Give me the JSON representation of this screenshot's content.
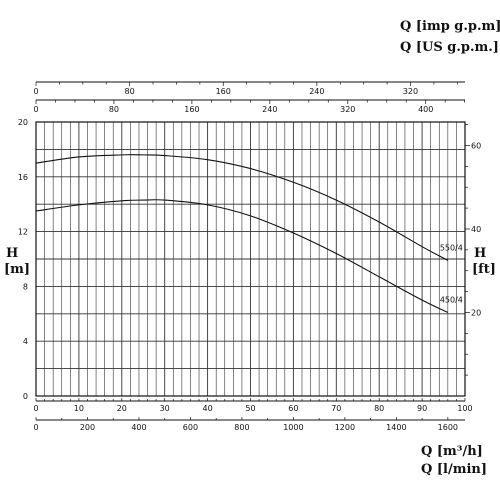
{
  "chart_data": {
    "type": "line",
    "units": {
      "top_line1": "Q [imp g.p.m]",
      "top_line2": "Q [US g.p.m.]",
      "bottom_line1": "Q [m³/h]",
      "bottom_line2": "Q [l/min]",
      "left_H": "H",
      "left_unit": "[m]",
      "right_H": "H",
      "right_unit": "[ft]"
    },
    "axes": {
      "x_m3h": {
        "range": [
          0,
          100
        ],
        "ticks": [
          "0",
          "10",
          "20",
          "30",
          "40",
          "50",
          "60",
          "70",
          "80",
          "90",
          "100"
        ]
      },
      "x_lmin": {
        "ticks": [
          "0",
          "200",
          "400",
          "600",
          "800",
          "1000",
          "1200",
          "1400",
          "1600"
        ]
      },
      "x_impgpm": {
        "ticks": [
          "0",
          "80",
          "160",
          "240",
          "320"
        ]
      },
      "x_usgpm": {
        "ticks": [
          "0",
          "80",
          "160",
          "240",
          "320",
          "400"
        ]
      },
      "y_m": {
        "range": [
          0,
          20
        ],
        "ticks": [
          "0",
          "4",
          "8",
          "12",
          "16",
          "20"
        ]
      },
      "y_ft": {
        "ticks": [
          "20",
          "40",
          "60"
        ]
      }
    },
    "grid": true,
    "series": [
      {
        "name": "550/4",
        "x": [
          0,
          10,
          20,
          25,
          30,
          40,
          50,
          60,
          70,
          80,
          90,
          96
        ],
        "y": [
          17.0,
          17.45,
          17.6,
          17.6,
          17.55,
          17.25,
          16.6,
          15.6,
          14.3,
          12.7,
          10.9,
          9.9
        ]
      },
      {
        "name": "450/4",
        "x": [
          0,
          10,
          20,
          25,
          30,
          40,
          50,
          60,
          70,
          80,
          90,
          96
        ],
        "y": [
          13.5,
          13.95,
          14.25,
          14.3,
          14.3,
          13.95,
          13.15,
          11.9,
          10.4,
          8.7,
          7.0,
          6.1
        ]
      }
    ],
    "colors": {
      "line": "#111111",
      "grid": "#333333"
    }
  }
}
